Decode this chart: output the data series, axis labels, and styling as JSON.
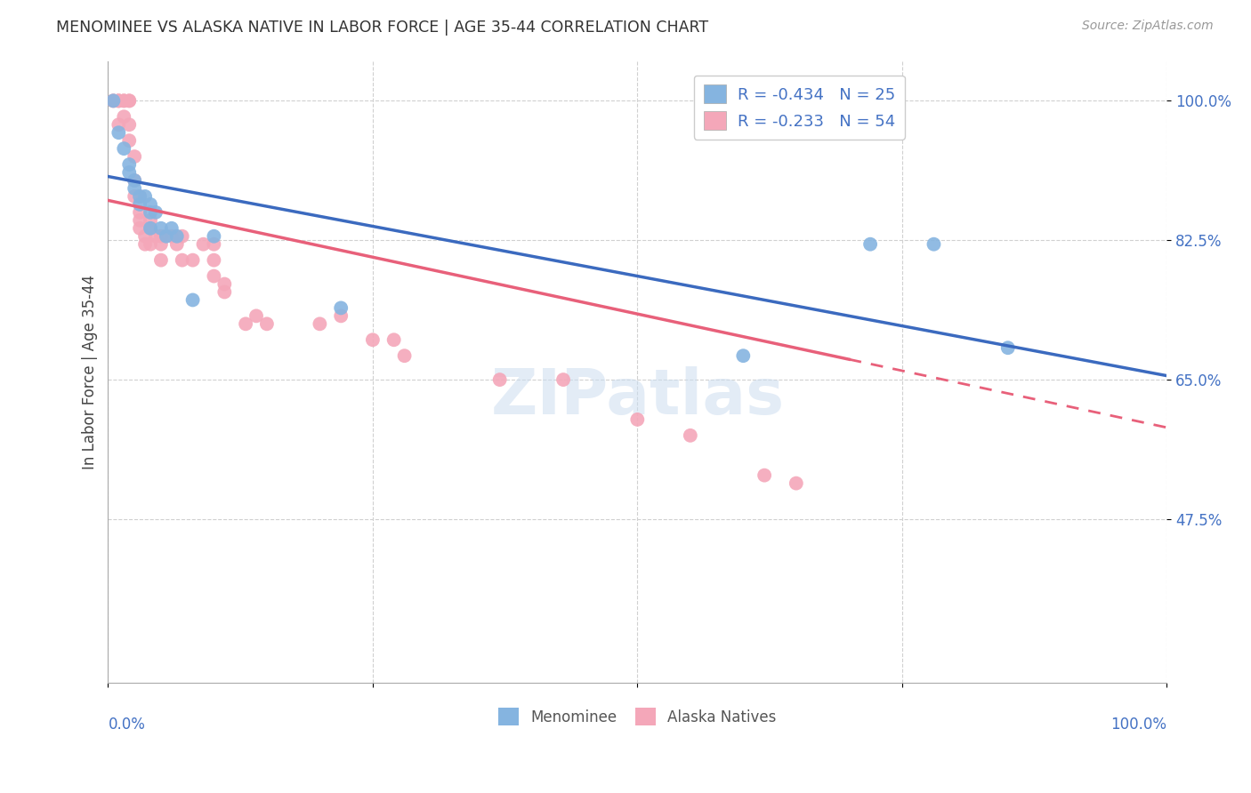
{
  "title": "MENOMINEE VS ALASKA NATIVE IN LABOR FORCE | AGE 35-44 CORRELATION CHART",
  "source": "Source: ZipAtlas.com",
  "ylabel": "In Labor Force | Age 35-44",
  "yticks": [
    1.0,
    0.825,
    0.65,
    0.475
  ],
  "ytick_labels": [
    "100.0%",
    "82.5%",
    "65.0%",
    "47.5%"
  ],
  "xlim": [
    0.0,
    1.0
  ],
  "ylim": [
    0.27,
    1.05
  ],
  "menominee_color": "#85b4e0",
  "alaska_color": "#f4a7b9",
  "trend_menominee_color": "#3b6abf",
  "trend_alaska_color": "#e8607a",
  "legend_r_menominee": "R = -0.434",
  "legend_n_menominee": "N = 25",
  "legend_r_alaska": "R = -0.233",
  "legend_n_alaska": "N = 54",
  "watermark": "ZIPatlas",
  "trend_men_x0": 0.0,
  "trend_men_y0": 0.905,
  "trend_men_x1": 1.0,
  "trend_men_y1": 0.655,
  "trend_ala_x0": 0.0,
  "trend_ala_y0": 0.875,
  "trend_ala_x1": 1.0,
  "trend_ala_y1": 0.59,
  "trend_ala_solid_end": 0.7,
  "menominee_x": [
    0.005,
    0.01,
    0.015,
    0.02,
    0.02,
    0.025,
    0.025,
    0.03,
    0.03,
    0.035,
    0.04,
    0.04,
    0.04,
    0.045,
    0.05,
    0.055,
    0.06,
    0.065,
    0.08,
    0.1,
    0.22,
    0.6,
    0.72,
    0.78,
    0.85
  ],
  "menominee_y": [
    1.0,
    0.96,
    0.94,
    0.92,
    0.91,
    0.9,
    0.89,
    0.88,
    0.87,
    0.88,
    0.87,
    0.86,
    0.84,
    0.86,
    0.84,
    0.83,
    0.84,
    0.83,
    0.75,
    0.83,
    0.74,
    0.68,
    0.82,
    0.82,
    0.69
  ],
  "alaska_x": [
    0.005,
    0.005,
    0.01,
    0.01,
    0.01,
    0.01,
    0.015,
    0.015,
    0.015,
    0.02,
    0.02,
    0.02,
    0.02,
    0.025,
    0.025,
    0.025,
    0.03,
    0.03,
    0.03,
    0.03,
    0.035,
    0.035,
    0.04,
    0.04,
    0.04,
    0.045,
    0.05,
    0.05,
    0.05,
    0.06,
    0.065,
    0.07,
    0.07,
    0.08,
    0.09,
    0.1,
    0.1,
    0.1,
    0.11,
    0.11,
    0.13,
    0.14,
    0.15,
    0.2,
    0.22,
    0.25,
    0.27,
    0.28,
    0.37,
    0.43,
    0.5,
    0.55,
    0.62,
    0.65
  ],
  "alaska_y": [
    1.0,
    1.0,
    1.0,
    1.0,
    1.0,
    0.97,
    1.0,
    1.0,
    0.98,
    1.0,
    1.0,
    0.97,
    0.95,
    0.93,
    0.9,
    0.88,
    0.88,
    0.86,
    0.85,
    0.84,
    0.83,
    0.82,
    0.85,
    0.84,
    0.82,
    0.83,
    0.83,
    0.82,
    0.8,
    0.83,
    0.82,
    0.83,
    0.8,
    0.8,
    0.82,
    0.82,
    0.8,
    0.78,
    0.77,
    0.76,
    0.72,
    0.73,
    0.72,
    0.72,
    0.73,
    0.7,
    0.7,
    0.68,
    0.65,
    0.65,
    0.6,
    0.58,
    0.53,
    0.52
  ]
}
